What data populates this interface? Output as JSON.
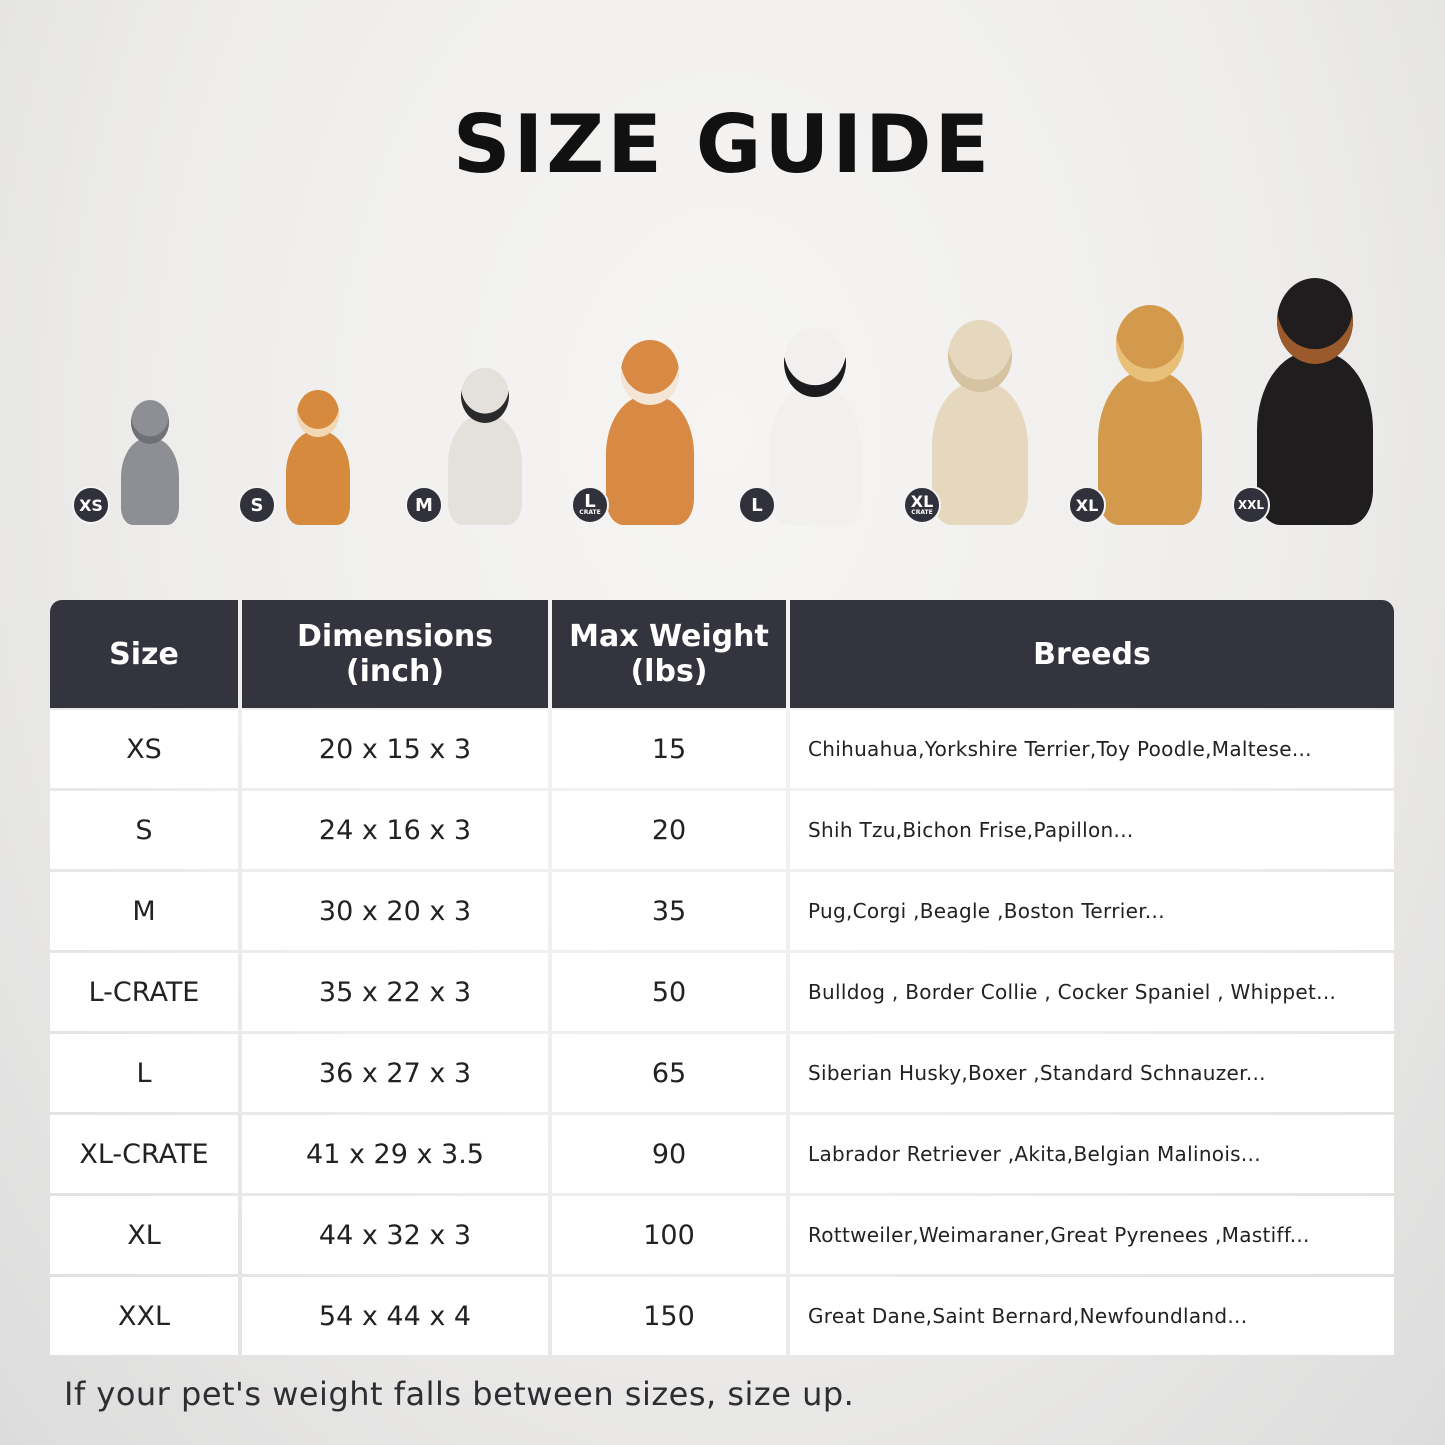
{
  "title": "SIZE GUIDE",
  "pets": [
    {
      "badge": "XS",
      "sub": "",
      "animal": "cat",
      "color": "#8d8f94",
      "accent": "#6f7176"
    },
    {
      "badge": "S",
      "sub": "",
      "animal": "pomeranian",
      "color": "#d58a3e",
      "accent": "#f2d7b3"
    },
    {
      "badge": "M",
      "sub": "",
      "animal": "french-bulldog",
      "color": "#e4e1dc",
      "accent": "#2a2a2a"
    },
    {
      "badge": "L",
      "sub": "CRATE",
      "animal": "shiba-inu",
      "color": "#d88a45",
      "accent": "#f4e6d6"
    },
    {
      "badge": "L",
      "sub": "",
      "animal": "border-collie",
      "color": "#f1f0ee",
      "accent": "#1c1c1e"
    },
    {
      "badge": "XL",
      "sub": "CRATE",
      "animal": "labrador",
      "color": "#e6d8bf",
      "accent": "#d6c3a2"
    },
    {
      "badge": "XL",
      "sub": "",
      "animal": "golden-retriever",
      "color": "#d39a4e",
      "accent": "#e9c07a"
    },
    {
      "badge": "XXL",
      "sub": "",
      "animal": "doberman",
      "color": "#1f1d1d",
      "accent": "#9a5a2c"
    }
  ],
  "table": {
    "headers": [
      [
        "Size"
      ],
      [
        "Dimensions",
        "(inch)"
      ],
      [
        "Max Weight",
        "(lbs)"
      ],
      [
        "Breeds"
      ]
    ],
    "rows": [
      [
        "XS",
        "20 x 15 x 3",
        "15",
        "Chihuahua,Yorkshire Terrier,Toy Poodle,Maltese..."
      ],
      [
        "S",
        "24 x 16 x 3",
        "20",
        "Shih Tzu,Bichon Frise,Papillon..."
      ],
      [
        "M",
        "30 x 20 x 3",
        "35",
        "Pug,Corgi ,Beagle ,Boston Terrier..."
      ],
      [
        "L-CRATE",
        "35 x 22 x 3",
        "50",
        "Bulldog , Border Collie , Cocker Spaniel , Whippet..."
      ],
      [
        "L",
        "36 x 27 x 3",
        "65",
        "Siberian Husky,Boxer ,Standard Schnauzer..."
      ],
      [
        "XL-CRATE",
        "41 x 29 x 3.5",
        "90",
        "Labrador Retriever ,Akita,Belgian Malinois..."
      ],
      [
        "XL",
        "44 x 32 x 3",
        "100",
        "Rottweiler,Weimaraner,Great Pyrenees ,Mastiff..."
      ],
      [
        "XXL",
        "54 x 44 x 4",
        "150",
        "Great Dane,Saint Bernard,Newfoundland..."
      ]
    ]
  },
  "footer": "If your pet's weight falls between sizes, size up.",
  "colors": {
    "header_bg": "#33343d",
    "badge_bg": "#30313b"
  }
}
